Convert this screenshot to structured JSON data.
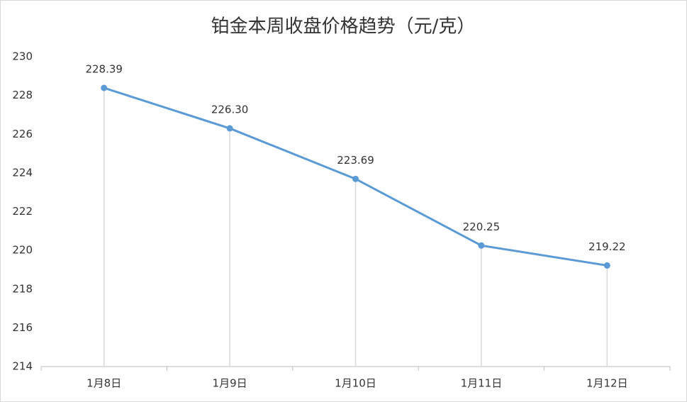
{
  "chart_data": {
    "type": "line",
    "title": "铂金本周收盘价格趋势（元/克）",
    "categories": [
      "1月8日",
      "1月9日",
      "1月10日",
      "1月11日",
      "1月12日"
    ],
    "values": [
      228.39,
      226.3,
      223.69,
      220.25,
      219.22
    ],
    "value_labels": [
      "228.39",
      "226.30",
      "223.69",
      "220.25",
      "219.22"
    ],
    "color": "#5b9bd5",
    "ylim": [
      214,
      230
    ],
    "yticks": [
      214,
      216,
      218,
      220,
      222,
      224,
      226,
      228,
      230
    ],
    "drop_lines": true
  }
}
